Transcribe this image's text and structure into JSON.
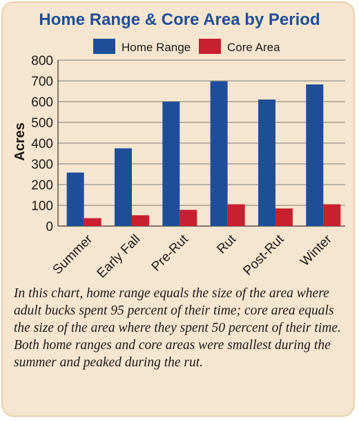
{
  "chart_data": {
    "type": "bar",
    "title": "Home Range & Core Area by Period",
    "ylabel": "Acres",
    "xlabel": "",
    "categories": [
      "Summer",
      "Early Fall",
      "Pre-Rut",
      "Rut",
      "Post-Rut",
      "Winter"
    ],
    "series": [
      {
        "name": "Home Range",
        "color": "#1f4e99",
        "values": [
          258,
          375,
          600,
          698,
          610,
          683
        ]
      },
      {
        "name": "Core Area",
        "color": "#c8202f",
        "values": [
          38,
          52,
          78,
          105,
          85,
          105
        ]
      }
    ],
    "ylim": [
      0,
      800
    ],
    "yticks": [
      0,
      100,
      200,
      300,
      400,
      500,
      600,
      700,
      800
    ],
    "grid": true,
    "legend": "top"
  },
  "caption": "In this chart, home range equals the size of the area where adult bucks spent 95 percent of their time; core area equals the size of the area where they spent 50 percent of their time. Both home ranges and core areas were smallest during the summer and peaked during the rut."
}
